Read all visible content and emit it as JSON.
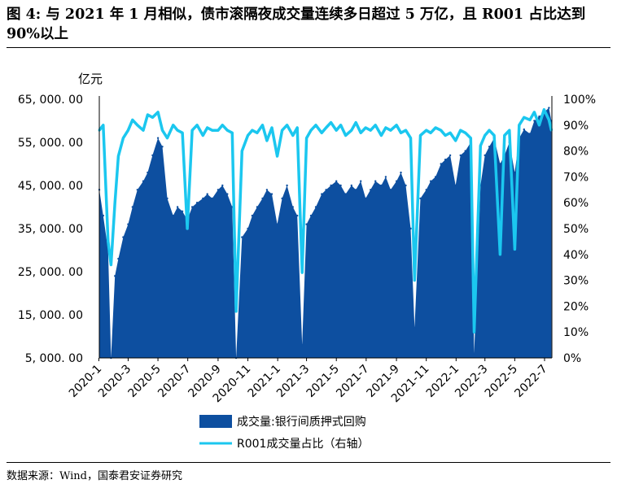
{
  "figure": {
    "title": "图 4: 与 2021 年 1 月相似，债市滚隔夜成交量连续多日超过 5 万亿，且 R001 占比达到 90%以上",
    "source": "数据来源：Wind，国泰君安证券研究"
  },
  "chart_data": {
    "type": "area",
    "y_unit_label": "亿元",
    "ylim_left": [
      5000,
      65000
    ],
    "ylim_right": [
      0,
      100
    ],
    "yticks_left": [
      "65, 000. 00",
      "55, 000. 00",
      "45, 000. 00",
      "35, 000. 00",
      "25, 000. 00",
      "15, 000. 00",
      "5, 000. 00"
    ],
    "yticks_right": [
      "100%",
      "90%",
      "80%",
      "70%",
      "60%",
      "50%",
      "40%",
      "30%",
      "20%",
      "10%",
      "0%"
    ],
    "xticks": [
      "2020-1",
      "2020-3",
      "2020-5",
      "2020-7",
      "2020-9",
      "2020-11",
      "2021-1",
      "2021-3",
      "2021-5",
      "2021-7",
      "2021-9",
      "2021-11",
      "2022-1",
      "2022-3",
      "2022-5",
      "2022-7"
    ],
    "colors": {
      "volume": "#0d4fa0",
      "ratio": "#1bc7ef"
    },
    "series": [
      {
        "name": "成交量:银行间质押式回购",
        "axis": "left",
        "x": [
          "2020-01-02",
          "2020-01-10",
          "2020-01-20",
          "2020-01-26",
          "2020-02-03",
          "2020-02-10",
          "2020-02-20",
          "2020-03-01",
          "2020-03-10",
          "2020-03-20",
          "2020-04-01",
          "2020-04-10",
          "2020-04-20",
          "2020-05-01",
          "2020-05-10",
          "2020-05-20",
          "2020-06-01",
          "2020-06-10",
          "2020-06-20",
          "2020-06-30",
          "2020-07-10",
          "2020-07-20",
          "2020-08-01",
          "2020-08-10",
          "2020-08-20",
          "2020-09-01",
          "2020-09-10",
          "2020-09-20",
          "2020-09-30",
          "2020-10-08",
          "2020-10-20",
          "2020-11-01",
          "2020-11-10",
          "2020-11-20",
          "2020-12-01",
          "2020-12-10",
          "2020-12-20",
          "2020-12-31",
          "2021-01-10",
          "2021-01-20",
          "2021-02-01",
          "2021-02-10",
          "2021-02-20",
          "2021-03-01",
          "2021-03-10",
          "2021-03-20",
          "2021-04-01",
          "2021-04-10",
          "2021-04-20",
          "2021-05-01",
          "2021-05-10",
          "2021-05-20",
          "2021-06-01",
          "2021-06-10",
          "2021-06-20",
          "2021-06-30",
          "2021-07-10",
          "2021-07-20",
          "2021-08-01",
          "2021-08-10",
          "2021-08-20",
          "2021-09-01",
          "2021-09-10",
          "2021-09-20",
          "2021-09-30",
          "2021-10-08",
          "2021-10-20",
          "2021-11-01",
          "2021-11-10",
          "2021-11-20",
          "2021-12-01",
          "2021-12-10",
          "2021-12-20",
          "2021-12-31",
          "2022-01-10",
          "2022-01-20",
          "2022-01-31",
          "2022-02-07",
          "2022-02-20",
          "2022-03-01",
          "2022-03-10",
          "2022-03-20",
          "2022-04-01",
          "2022-04-10",
          "2022-04-20",
          "2022-05-01",
          "2022-05-10",
          "2022-05-20",
          "2022-06-01",
          "2022-06-10",
          "2022-06-20",
          "2022-06-30",
          "2022-07-10",
          "2022-07-15"
        ],
        "values": [
          44000,
          38000,
          30000,
          5000,
          24000,
          28000,
          33000,
          36000,
          40000,
          44000,
          46000,
          48000,
          52000,
          56000,
          54000,
          42000,
          38000,
          40000,
          39000,
          37000,
          40000,
          41000,
          42000,
          43000,
          42000,
          44000,
          45000,
          43000,
          40000,
          5000,
          33000,
          35000,
          38000,
          40000,
          42000,
          44000,
          43000,
          36000,
          42000,
          45000,
          40000,
          38000,
          8000,
          36000,
          38000,
          40000,
          43000,
          44000,
          45000,
          46000,
          45000,
          43000,
          45000,
          44000,
          46000,
          42000,
          44000,
          46000,
          45000,
          47000,
          44000,
          46000,
          48000,
          45000,
          35000,
          12000,
          42000,
          44000,
          46000,
          47000,
          50000,
          51000,
          52000,
          45000,
          52000,
          53000,
          55000,
          6000,
          45000,
          52000,
          54000,
          56000,
          50000,
          52000,
          55000,
          48000,
          56000,
          58000,
          57000,
          60000,
          61000,
          62000,
          63000,
          60000
        ]
      },
      {
        "name": "R001成交量占比（右轴）",
        "axis": "right",
        "x": [
          "2020-01-02",
          "2020-01-10",
          "2020-01-20",
          "2020-01-26",
          "2020-02-03",
          "2020-02-10",
          "2020-02-20",
          "2020-03-01",
          "2020-03-10",
          "2020-03-20",
          "2020-04-01",
          "2020-04-10",
          "2020-04-20",
          "2020-05-01",
          "2020-05-10",
          "2020-05-20",
          "2020-06-01",
          "2020-06-10",
          "2020-06-20",
          "2020-06-30",
          "2020-07-10",
          "2020-07-20",
          "2020-08-01",
          "2020-08-10",
          "2020-08-20",
          "2020-09-01",
          "2020-09-10",
          "2020-09-20",
          "2020-09-30",
          "2020-10-08",
          "2020-10-20",
          "2020-11-01",
          "2020-11-10",
          "2020-11-20",
          "2020-12-01",
          "2020-12-10",
          "2020-12-20",
          "2020-12-31",
          "2021-01-10",
          "2021-01-20",
          "2021-02-01",
          "2021-02-10",
          "2021-02-20",
          "2021-03-01",
          "2021-03-10",
          "2021-03-20",
          "2021-04-01",
          "2021-04-10",
          "2021-04-20",
          "2021-05-01",
          "2021-05-10",
          "2021-05-20",
          "2021-06-01",
          "2021-06-10",
          "2021-06-20",
          "2021-06-30",
          "2021-07-10",
          "2021-07-20",
          "2021-08-01",
          "2021-08-10",
          "2021-08-20",
          "2021-09-01",
          "2021-09-10",
          "2021-09-20",
          "2021-09-30",
          "2021-10-08",
          "2021-10-20",
          "2021-11-01",
          "2021-11-10",
          "2021-11-20",
          "2021-12-01",
          "2021-12-10",
          "2021-12-20",
          "2021-12-31",
          "2022-01-10",
          "2022-01-20",
          "2022-01-31",
          "2022-02-07",
          "2022-02-20",
          "2022-03-01",
          "2022-03-10",
          "2022-03-20",
          "2022-04-01",
          "2022-04-10",
          "2022-04-20",
          "2022-05-01",
          "2022-05-10",
          "2022-05-20",
          "2022-06-01",
          "2022-06-10",
          "2022-06-20",
          "2022-06-30",
          "2022-07-10",
          "2022-07-15"
        ],
        "values": [
          88,
          90,
          45,
          36,
          60,
          78,
          85,
          88,
          92,
          90,
          88,
          94,
          93,
          95,
          88,
          85,
          90,
          88,
          87,
          50,
          88,
          90,
          86,
          89,
          88,
          88,
          90,
          88,
          87,
          18,
          80,
          86,
          88,
          87,
          90,
          84,
          89,
          78,
          88,
          90,
          86,
          89,
          33,
          85,
          88,
          90,
          87,
          89,
          91,
          88,
          90,
          86,
          88,
          91,
          87,
          89,
          88,
          90,
          86,
          89,
          88,
          90,
          87,
          88,
          85,
          30,
          86,
          88,
          87,
          89,
          88,
          86,
          87,
          84,
          88,
          87,
          85,
          10,
          82,
          86,
          88,
          86,
          40,
          86,
          88,
          42,
          90,
          93,
          92,
          95,
          90,
          96,
          92,
          88
        ]
      }
    ],
    "legend": [
      "成交量:银行间质押式回购",
      "R001成交量占比（右轴）"
    ],
    "legend_position": "bottom"
  }
}
